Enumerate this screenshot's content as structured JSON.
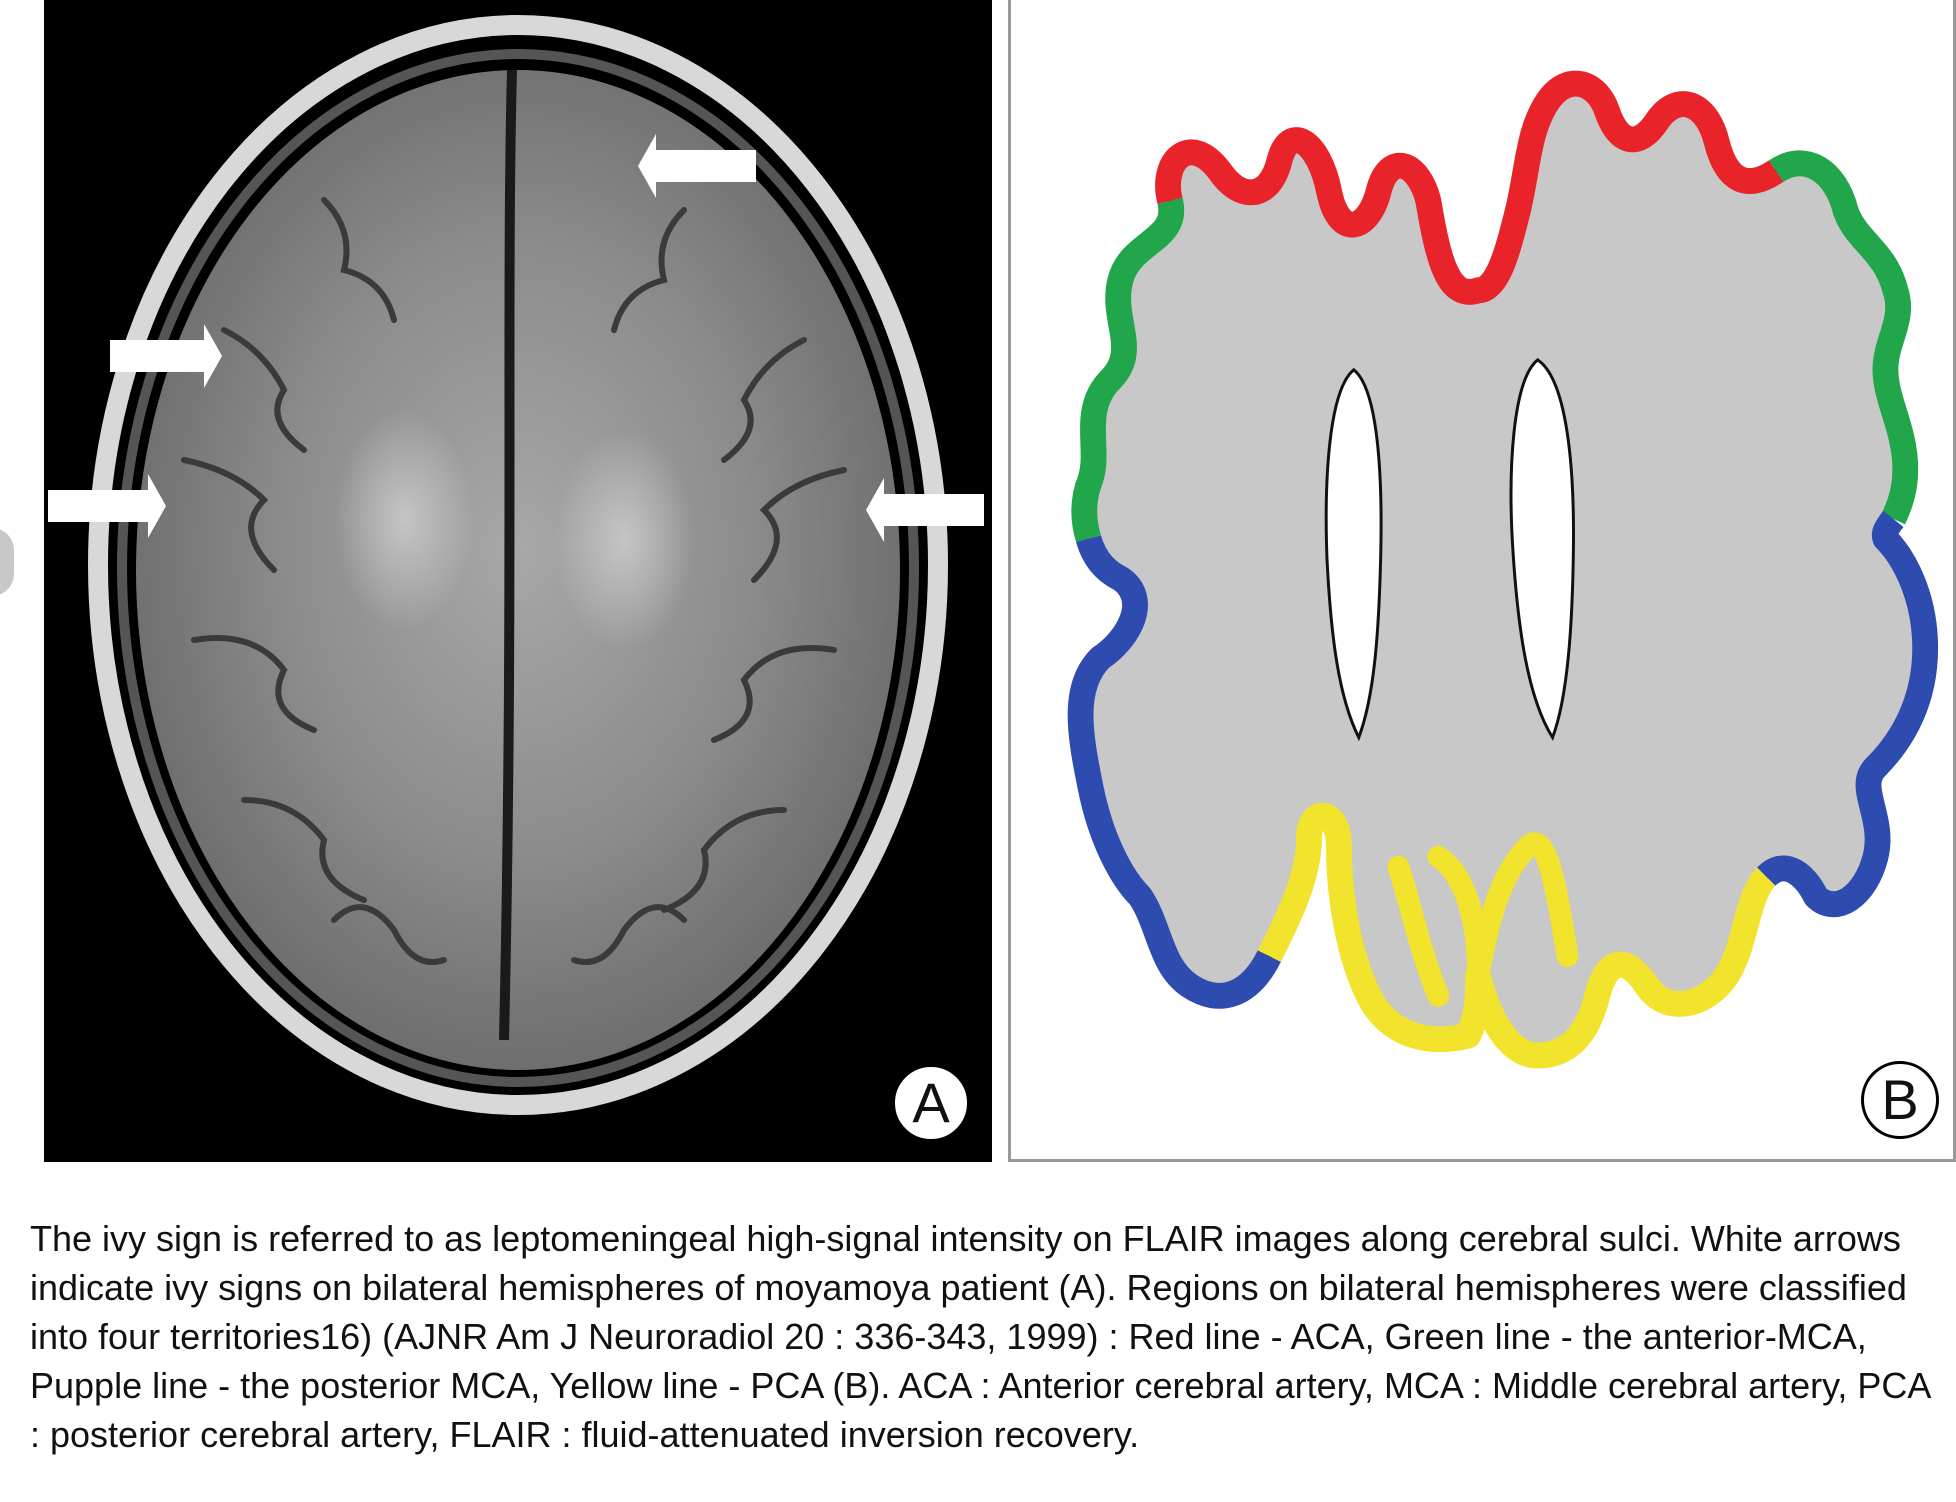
{
  "figure": {
    "panel_a": {
      "label": "A"
    },
    "panel_b": {
      "label": "B"
    },
    "colors": {
      "aca_red": "#e8232a",
      "anterior_mca_green": "#22a64b",
      "posterior_mca_blue": "#2e4bb0",
      "pca_yellow": "#f2e32c",
      "brain_gray": "#c8c8c8",
      "outline": "#111111"
    },
    "caption": "The ivy sign is referred to as leptomeningeal high-signal intensity on FLAIR images along cerebral sulci. White arrows indicate ivy signs on bilateral hemispheres of moyamoya patient (A). Regions on bilateral hemispheres were classified into four territories16) (AJNR Am J Neuroradiol 20 : 336-343, 1999) : Red line - ACA, Green line - the anterior-MCA, Pupple line - the posterior MCA, Yellow line - PCA (B). ACA : Anterior cerebral artery, MCA : Middle cerebral artery, PCA : posterior cerebral artery, FLAIR : fluid-attenuated inversion recovery."
  }
}
